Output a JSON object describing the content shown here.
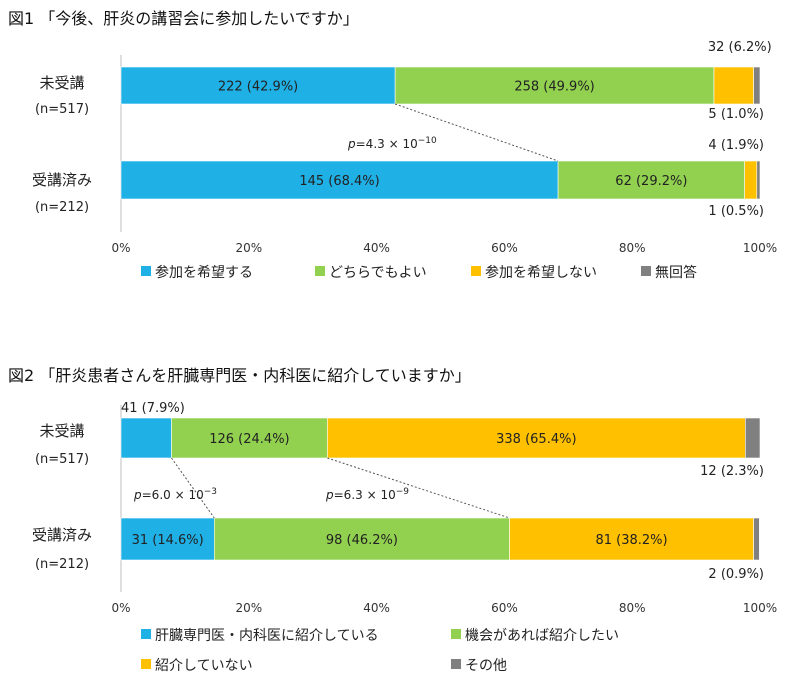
{
  "chart_data": [
    {
      "type": "bar",
      "orientation": "horizontal-stacked-percent",
      "title": "図1 「今後、肝炎の講習会に参加したいですか」",
      "categories": [
        {
          "label": "未受講",
          "n": "(n=517)"
        },
        {
          "label": "受講済み",
          "n": "(n=212)"
        }
      ],
      "series": [
        {
          "name": "参加を希望する",
          "color": "#1FB0E6",
          "values": [
            42.9,
            68.4
          ],
          "labels": [
            "222 (42.9%)",
            "145 (68.4%)"
          ]
        },
        {
          "name": "どちらでもよい",
          "color": "#92D050",
          "values": [
            49.9,
            29.2
          ],
          "labels": [
            "258 (49.9%)",
            "62 (29.2%)"
          ]
        },
        {
          "name": "参加を希望しない",
          "color": "#FFC000",
          "values": [
            6.2,
            1.9
          ],
          "labels": [
            "32 (6.2%)",
            "4 (1.9%)"
          ]
        },
        {
          "name": "無回答",
          "color": "#808080",
          "values": [
            1.0,
            0.5
          ],
          "labels": [
            "5 (1.0%)",
            "1 (0.5%)"
          ]
        }
      ],
      "xticks": [
        "0%",
        "20%",
        "40%",
        "60%",
        "80%",
        "100%"
      ],
      "xlim": [
        0,
        100
      ],
      "annotations": [
        {
          "p": "p",
          "eq": "=4.3 × 10",
          "exp": "−10",
          "between_series": 0
        }
      ],
      "legend": "bottom"
    },
    {
      "type": "bar",
      "orientation": "horizontal-stacked-percent",
      "title": "図2 「肝炎患者さんを肝臓専門医・内科医に紹介していますか」",
      "categories": [
        {
          "label": "未受講",
          "n": "(n=517)"
        },
        {
          "label": "受講済み",
          "n": "(n=212)"
        }
      ],
      "series": [
        {
          "name": "肝臓専門医・内科医に紹介している",
          "color": "#1FB0E6",
          "values": [
            7.9,
            14.6
          ],
          "labels": [
            "41 (7.9%)",
            "31 (14.6%)"
          ]
        },
        {
          "name": "機会があれば紹介したい",
          "color": "#92D050",
          "values": [
            24.4,
            46.2
          ],
          "labels": [
            "126 (24.4%)",
            "98 (46.2%)"
          ]
        },
        {
          "name": "紹介していない",
          "color": "#FFC000",
          "values": [
            65.4,
            38.2
          ],
          "labels": [
            "338 (65.4%)",
            "81 (38.2%)"
          ]
        },
        {
          "name": "その他",
          "color": "#808080",
          "values": [
            2.3,
            0.9
          ],
          "labels": [
            "12 (2.3%)",
            "2 (0.9%)"
          ]
        }
      ],
      "xticks": [
        "0%",
        "20%",
        "40%",
        "60%",
        "80%",
        "100%"
      ],
      "xlim": [
        0,
        100
      ],
      "annotations": [
        {
          "p": "p",
          "eq": "=6.0 × 10",
          "exp": "−3",
          "between_series": 0
        },
        {
          "p": "p",
          "eq": "=6.3 × 10",
          "exp": "−9",
          "between_series": 1
        }
      ],
      "legend": "bottom"
    }
  ]
}
